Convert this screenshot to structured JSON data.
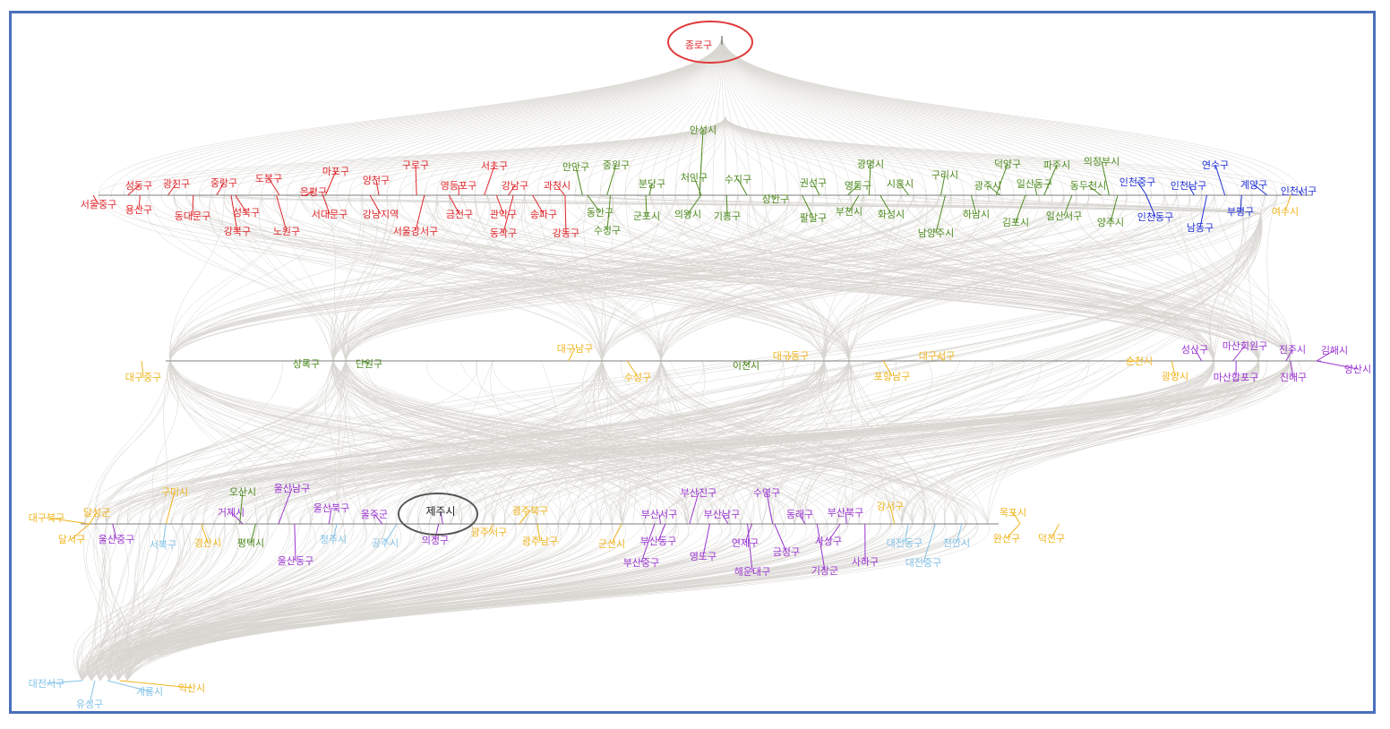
{
  "colors": {
    "edge": "#b9b4ab",
    "seoul": "#e0262b",
    "gyeonggi": "#4e8a1f",
    "incheon": "#1f2fd6",
    "yeongnam_honam": "#f0b41c",
    "gyeongnam": "#9b34d1",
    "chungcheong": "#82c2e6",
    "highlight_red": "#e03a3a",
    "highlight_gray": "#555555",
    "frame": "#4a6fbd"
  },
  "highlights": [
    {
      "name": "종로구",
      "ring": "highlight_red"
    },
    {
      "name": "제주시",
      "ring": "highlight_gray"
    }
  ],
  "levels": [
    {
      "id": "top",
      "nodes": [
        {
          "name": "종로구",
          "group": "seoul"
        }
      ]
    },
    {
      "id": "level2",
      "nodes": [
        {
          "name": "서울중구",
          "group": "seoul"
        },
        {
          "name": "성동구",
          "group": "seoul"
        },
        {
          "name": "용산구",
          "group": "seoul"
        },
        {
          "name": "광진구",
          "group": "seoul"
        },
        {
          "name": "동대문구",
          "group": "seoul"
        },
        {
          "name": "중랑구",
          "group": "seoul"
        },
        {
          "name": "강북구",
          "group": "seoul"
        },
        {
          "name": "성북구",
          "group": "seoul"
        },
        {
          "name": "도봉구",
          "group": "seoul"
        },
        {
          "name": "노원구",
          "group": "seoul"
        },
        {
          "name": "은평구",
          "group": "seoul"
        },
        {
          "name": "마포구",
          "group": "seoul"
        },
        {
          "name": "서대문구",
          "group": "seoul"
        },
        {
          "name": "양천구",
          "group": "seoul"
        },
        {
          "name": "강남지역",
          "group": "seoul"
        },
        {
          "name": "구로구",
          "group": "seoul"
        },
        {
          "name": "서울강서구",
          "group": "seoul"
        },
        {
          "name": "영등포구",
          "group": "seoul"
        },
        {
          "name": "금천구",
          "group": "seoul"
        },
        {
          "name": "서초구",
          "group": "seoul"
        },
        {
          "name": "관악구",
          "group": "seoul"
        },
        {
          "name": "강남구",
          "group": "seoul"
        },
        {
          "name": "동작구",
          "group": "seoul"
        },
        {
          "name": "송파구",
          "group": "seoul"
        },
        {
          "name": "과천시",
          "group": "seoul"
        },
        {
          "name": "강동구",
          "group": "seoul"
        },
        {
          "name": "만안구",
          "group": "gyeonggi"
        },
        {
          "name": "동안구",
          "group": "gyeonggi"
        },
        {
          "name": "중원구",
          "group": "gyeonggi"
        },
        {
          "name": "수정구",
          "group": "gyeonggi"
        },
        {
          "name": "분당구",
          "group": "gyeonggi"
        },
        {
          "name": "군포시",
          "group": "gyeonggi"
        },
        {
          "name": "안성시",
          "group": "gyeonggi"
        },
        {
          "name": "처인구",
          "group": "gyeonggi"
        },
        {
          "name": "의왕시",
          "group": "gyeonggi"
        },
        {
          "name": "수지구",
          "group": "gyeonggi"
        },
        {
          "name": "기흥구",
          "group": "gyeonggi"
        },
        {
          "name": "장안구",
          "group": "gyeonggi"
        },
        {
          "name": "권선구",
          "group": "gyeonggi"
        },
        {
          "name": "팔달구",
          "group": "gyeonggi"
        },
        {
          "name": "영통구",
          "group": "gyeonggi"
        },
        {
          "name": "부천시",
          "group": "gyeonggi"
        },
        {
          "name": "광명시",
          "group": "gyeonggi"
        },
        {
          "name": "시흥시",
          "group": "gyeonggi"
        },
        {
          "name": "화성시",
          "group": "gyeonggi"
        },
        {
          "name": "남양주시",
          "group": "gyeonggi"
        },
        {
          "name": "구리시",
          "group": "gyeonggi"
        },
        {
          "name": "하남시",
          "group": "gyeonggi"
        },
        {
          "name": "광주시",
          "group": "gyeonggi"
        },
        {
          "name": "덕양구",
          "group": "gyeonggi"
        },
        {
          "name": "김포시",
          "group": "gyeonggi"
        },
        {
          "name": "일산동구",
          "group": "gyeonggi"
        },
        {
          "name": "일산서구",
          "group": "gyeonggi"
        },
        {
          "name": "파주시",
          "group": "gyeonggi"
        },
        {
          "name": "동두천시",
          "group": "gyeonggi"
        },
        {
          "name": "의정부시",
          "group": "gyeonggi"
        },
        {
          "name": "양주시",
          "group": "gyeonggi"
        },
        {
          "name": "인천중구",
          "group": "incheon"
        },
        {
          "name": "인천동구",
          "group": "incheon"
        },
        {
          "name": "인천남구",
          "group": "incheon"
        },
        {
          "name": "남동구",
          "group": "incheon"
        },
        {
          "name": "연수구",
          "group": "incheon"
        },
        {
          "name": "부평구",
          "group": "incheon"
        },
        {
          "name": "계양구",
          "group": "incheon"
        },
        {
          "name": "인천서구",
          "group": "incheon"
        },
        {
          "name": "여수시",
          "group": "yeongnam_honam"
        }
      ]
    },
    {
      "id": "level3",
      "nodes": [
        {
          "name": "대구중구",
          "group": "yeongnam_honam"
        },
        {
          "name": "상록구",
          "group": "gyeonggi"
        },
        {
          "name": "단원구",
          "group": "gyeonggi"
        },
        {
          "name": "대구남구",
          "group": "yeongnam_honam"
        },
        {
          "name": "수성구",
          "group": "yeongnam_honam"
        },
        {
          "name": "이천시",
          "group": "gyeonggi"
        },
        {
          "name": "대구동구",
          "group": "yeongnam_honam"
        },
        {
          "name": "대구서구",
          "group": "yeongnam_honam"
        },
        {
          "name": "포항남구",
          "group": "yeongnam_honam"
        },
        {
          "name": "순천시",
          "group": "yeongnam_honam"
        },
        {
          "name": "광양시",
          "group": "yeongnam_honam"
        },
        {
          "name": "성산구",
          "group": "gyeongnam"
        },
        {
          "name": "마산회원구",
          "group": "gyeongnam"
        },
        {
          "name": "마산합포구",
          "group": "gyeongnam"
        },
        {
          "name": "진주시",
          "group": "gyeongnam"
        },
        {
          "name": "진해구",
          "group": "gyeongnam"
        },
        {
          "name": "김해시",
          "group": "gyeongnam"
        },
        {
          "name": "양산시",
          "group": "gyeongnam"
        }
      ]
    },
    {
      "id": "level4",
      "nodes": [
        {
          "name": "대구북구",
          "group": "yeongnam_honam"
        },
        {
          "name": "달서구",
          "group": "yeongnam_honam"
        },
        {
          "name": "달성군",
          "group": "yeongnam_honam"
        },
        {
          "name": "울산중구",
          "group": "gyeongnam"
        },
        {
          "name": "서북구",
          "group": "chungcheong"
        },
        {
          "name": "구미시",
          "group": "yeongnam_honam"
        },
        {
          "name": "경산시",
          "group": "yeongnam_honam"
        },
        {
          "name": "거제시",
          "group": "gyeongnam"
        },
        {
          "name": "오산시",
          "group": "gyeonggi"
        },
        {
          "name": "평택시",
          "group": "gyeonggi"
        },
        {
          "name": "울산남구",
          "group": "gyeongnam"
        },
        {
          "name": "울산동구",
          "group": "gyeongnam"
        },
        {
          "name": "울산북구",
          "group": "gyeongnam"
        },
        {
          "name": "청주시",
          "group": "chungcheong"
        },
        {
          "name": "울주군",
          "group": "gyeongnam"
        },
        {
          "name": "공주시",
          "group": "chungcheong"
        },
        {
          "name": "제주시",
          "group": "gyeongnam"
        },
        {
          "name": "의정구",
          "group": "gyeongnam"
        },
        {
          "name": "광주북구",
          "group": "yeongnam_honam"
        },
        {
          "name": "광주서구",
          "group": "yeongnam_honam"
        },
        {
          "name": "광주남구",
          "group": "yeongnam_honam"
        },
        {
          "name": "군산시",
          "group": "yeongnam_honam"
        },
        {
          "name": "부산진구",
          "group": "gyeongnam"
        },
        {
          "name": "부산서구",
          "group": "gyeongnam"
        },
        {
          "name": "부산동구",
          "group": "gyeongnam"
        },
        {
          "name": "부산중구",
          "group": "gyeongnam"
        },
        {
          "name": "부산남구",
          "group": "gyeongnam"
        },
        {
          "name": "영도구",
          "group": "gyeongnam"
        },
        {
          "name": "수영구",
          "group": "gyeongnam"
        },
        {
          "name": "연제구",
          "group": "gyeongnam"
        },
        {
          "name": "해운대구",
          "group": "gyeongnam"
        },
        {
          "name": "동래구",
          "group": "gyeongnam"
        },
        {
          "name": "금정구",
          "group": "gyeongnam"
        },
        {
          "name": "부산북구",
          "group": "gyeongnam"
        },
        {
          "name": "사상구",
          "group": "gyeongnam"
        },
        {
          "name": "기장군",
          "group": "gyeongnam"
        },
        {
          "name": "사하구",
          "group": "gyeongnam"
        },
        {
          "name": "강서구",
          "group": "yeongnam_honam"
        },
        {
          "name": "대전동구",
          "group": "chungcheong"
        },
        {
          "name": "대전중구",
          "group": "chungcheong"
        },
        {
          "name": "천안시",
          "group": "chungcheong"
        },
        {
          "name": "목포시",
          "group": "yeongnam_honam"
        },
        {
          "name": "완산구",
          "group": "yeongnam_honam"
        },
        {
          "name": "덕진구",
          "group": "yeongnam_honam"
        }
      ]
    },
    {
      "id": "level5",
      "nodes": [
        {
          "name": "대전서구",
          "group": "chungcheong"
        },
        {
          "name": "유성구",
          "group": "chungcheong"
        },
        {
          "name": "계룡시",
          "group": "chungcheong"
        },
        {
          "name": "익산시",
          "group": "yeongnam_honam"
        }
      ]
    }
  ]
}
